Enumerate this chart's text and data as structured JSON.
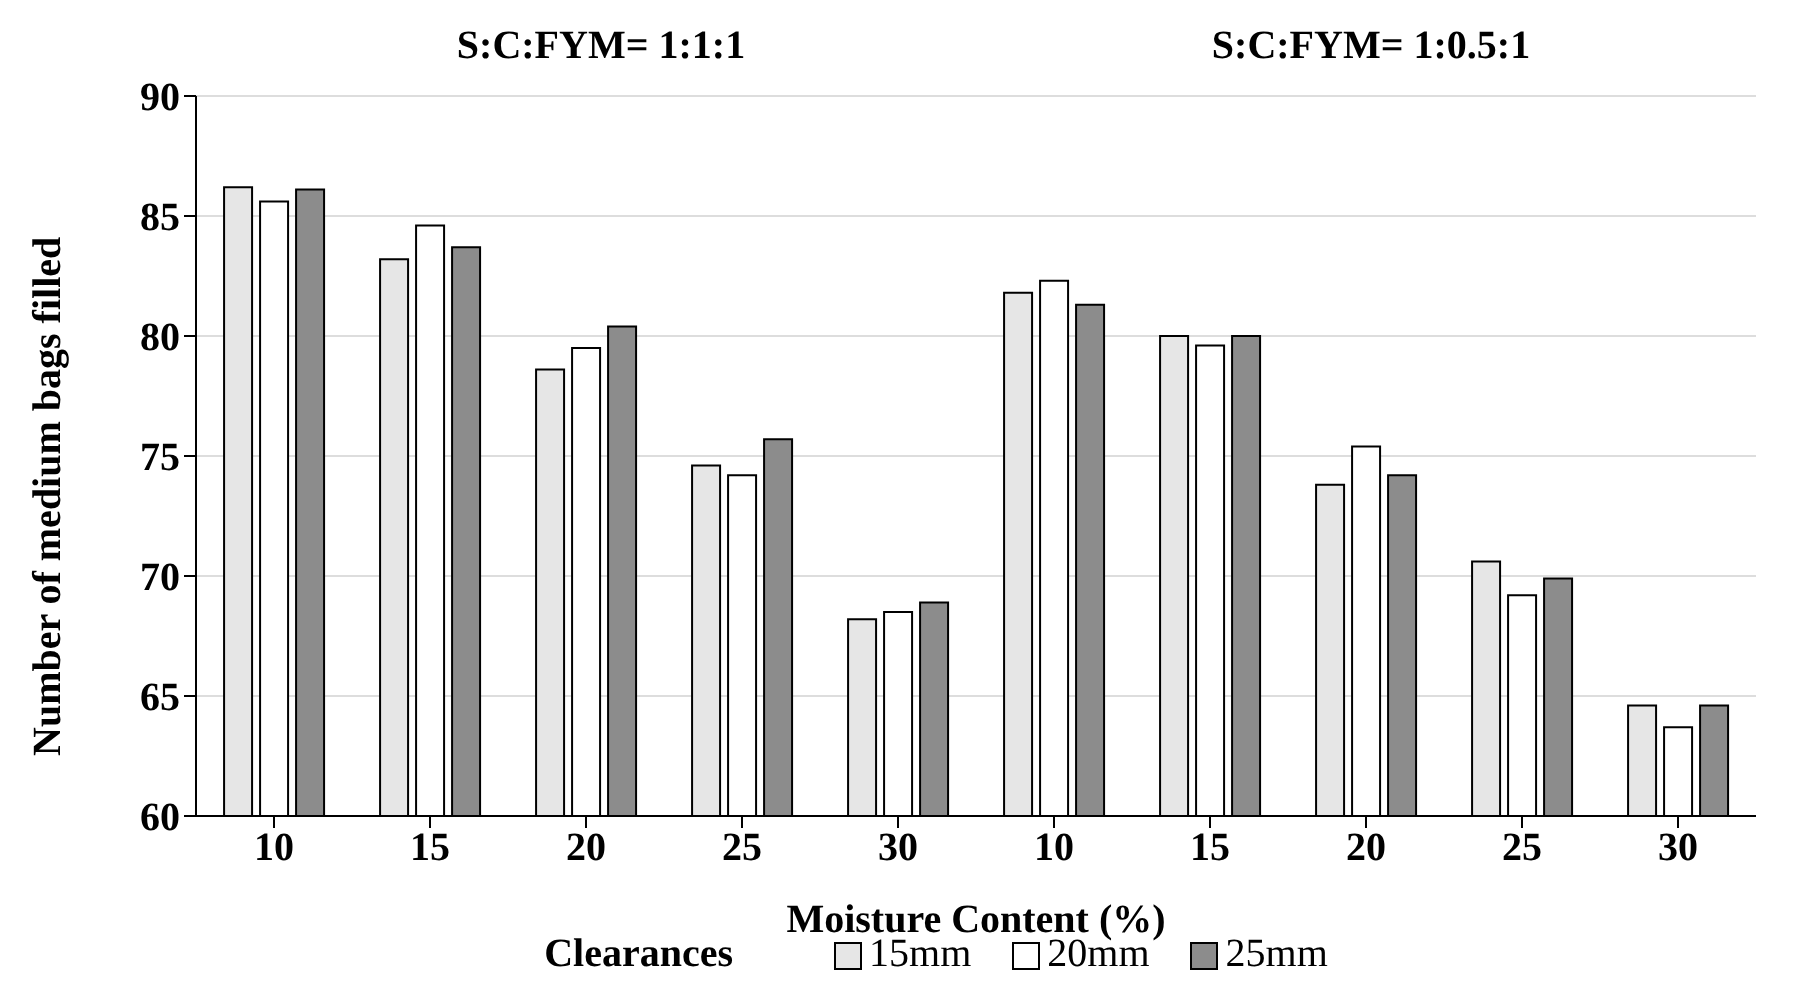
{
  "chart_data": {
    "type": "bar",
    "ylabel": "Number of medium bags filled",
    "xlabel": "Moisture Content (%)",
    "legend_title": "Clearances",
    "annotations": [
      "S:C:FYM= 1:1:1",
      "S:C:FYM= 1:0.5:1"
    ],
    "categories": [
      "10",
      "15",
      "20",
      "25",
      "30",
      "10",
      "15",
      "20",
      "25",
      "30"
    ],
    "series": [
      {
        "name": "15mm",
        "color": "#e6e6e6",
        "values": [
          86.2,
          83.2,
          78.6,
          74.6,
          68.2,
          81.8,
          80.0,
          73.8,
          70.6,
          64.6
        ]
      },
      {
        "name": "20mm",
        "color": "#ffffff",
        "values": [
          85.6,
          84.6,
          79.5,
          74.2,
          68.5,
          82.3,
          79.6,
          75.4,
          69.2,
          63.7
        ]
      },
      {
        "name": "25mm",
        "color": "#8c8c8c",
        "values": [
          86.1,
          83.7,
          80.4,
          75.7,
          68.9,
          81.3,
          80.0,
          74.2,
          69.9,
          64.6
        ]
      }
    ],
    "ylim": [
      60,
      90
    ],
    "yticks": [
      60,
      65,
      70,
      75,
      80,
      85,
      90
    ],
    "grid": "y",
    "legend": "bottom"
  }
}
